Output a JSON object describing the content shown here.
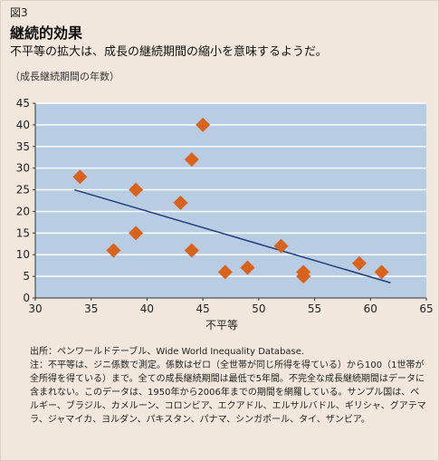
{
  "header": {
    "figure_label": "図3",
    "title": "継続的効果",
    "subtitle": "不平等の拡大は、成長の継続期間の縮小を意味するようだ。",
    "unit_note": "（成長継続期間の年数）"
  },
  "chart_data": {
    "type": "scatter",
    "xlabel": "不平等",
    "ylabel": "",
    "xlim": [
      30,
      65
    ],
    "ylim": [
      0,
      45
    ],
    "x_ticks": [
      30,
      35,
      40,
      45,
      50,
      55,
      60,
      65
    ],
    "y_ticks": [
      0,
      5,
      10,
      15,
      20,
      25,
      30,
      35,
      40,
      45
    ],
    "grid": "horizontal",
    "points": [
      {
        "x": 34,
        "y": 28
      },
      {
        "x": 37,
        "y": 11
      },
      {
        "x": 39,
        "y": 25
      },
      {
        "x": 39,
        "y": 15
      },
      {
        "x": 43,
        "y": 22
      },
      {
        "x": 44,
        "y": 32
      },
      {
        "x": 44,
        "y": 11
      },
      {
        "x": 45,
        "y": 40
      },
      {
        "x": 47,
        "y": 6
      },
      {
        "x": 49,
        "y": 7
      },
      {
        "x": 52,
        "y": 12
      },
      {
        "x": 54,
        "y": 6
      },
      {
        "x": 54,
        "y": 5
      },
      {
        "x": 59,
        "y": 8
      },
      {
        "x": 61,
        "y": 6
      }
    ],
    "trendline": {
      "x": [
        33.5,
        61.8
      ],
      "y": [
        25,
        3.5
      ]
    },
    "colors": {
      "plot_bg": "#b8cde4",
      "grid": "#ffffff",
      "marker": "#d9621c",
      "trend": "#1f3d7a",
      "axis": "#333333"
    }
  },
  "notes": {
    "source": "出所：ペンワールドテーブル、Wide World Inequality Database.",
    "note": "注：不平等は、ジニ係数で測定。係数はゼロ（全世帯が同じ所得を得ている）から100（1世帯が全所得を得ている）まで。全ての成長継続期間は最低で5年間。不完全な成長継続期間はデータに含まれない。このデータは、1950年から2006年までの期間を網羅している。サンプル国は、ベルギー、ブラジル、カメルーン、コロンビア、エクアドル、エルサルバドル、ギリシャ、グアテマラ、ジャマイカ、ヨルダン、パキスタン、パナマ、シンガポール、タイ、ザンビア。"
  }
}
